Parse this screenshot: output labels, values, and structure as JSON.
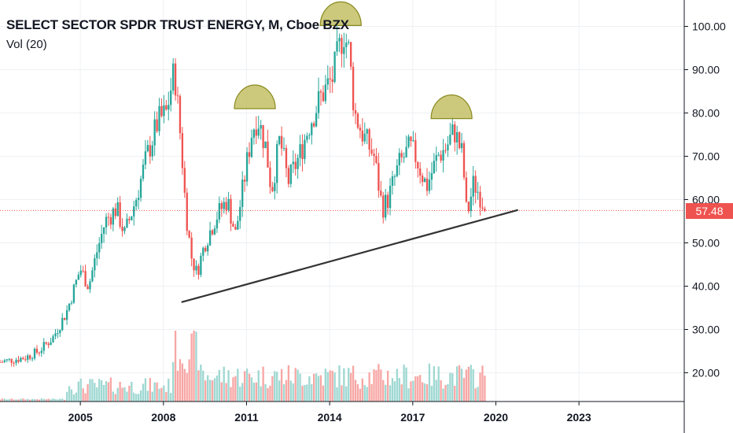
{
  "header": {
    "title": "SELECT SECTOR SPDR TRUST ENERGY, M, Cboe BZX",
    "volume_label": "Vol (20)"
  },
  "last_price": "57.48",
  "colors": {
    "up": "#26a69a",
    "down": "#ef5350",
    "vol_up": "#9fd8d2",
    "vol_down": "#f7a7a5",
    "trendline": "#333333",
    "annotation_fill": "#c3c066",
    "annotation_stroke": "#8a8a1f",
    "grid": "#eef0f3"
  },
  "chart_data": {
    "type": "candlestick",
    "title": "SELECT SECTOR SPDR TRUST ENERGY, M, Cboe BZX",
    "interval": "M",
    "exchange": "Cboe BZX",
    "x_ticks": [
      "2005",
      "2008",
      "2011",
      "2014",
      "2017",
      "2020",
      "2023"
    ],
    "y_ticks": [
      "20.00",
      "30.00",
      "40.00",
      "50.00",
      "60.00",
      "70.00",
      "80.00",
      "90.00",
      "100.00"
    ],
    "ylim": [
      15,
      105
    ],
    "xlim": [
      2002.1,
      2026.8
    ],
    "grid": true,
    "last_price": 57.48,
    "series": [
      {
        "name": "Vol (20)",
        "type": "volume"
      }
    ],
    "price_path": [
      [
        2002.1,
        22.5
      ],
      [
        2003.0,
        23.5
      ],
      [
        2003.5,
        25.0
      ],
      [
        2004.0,
        28.0
      ],
      [
        2004.5,
        34.0
      ],
      [
        2005.0,
        44.0
      ],
      [
        2005.3,
        40.0
      ],
      [
        2005.6,
        48.0
      ],
      [
        2005.9,
        55.0
      ],
      [
        2006.3,
        58.0
      ],
      [
        2006.6,
        52.0
      ],
      [
        2007.0,
        60.0
      ],
      [
        2007.4,
        70.0
      ],
      [
        2007.8,
        78.0
      ],
      [
        2008.1,
        80.0
      ],
      [
        2008.4,
        90.0
      ],
      [
        2008.65,
        72.0
      ],
      [
        2008.8,
        58.0
      ],
      [
        2009.0,
        47.0
      ],
      [
        2009.2,
        43.0
      ],
      [
        2009.5,
        50.0
      ],
      [
        2009.9,
        56.0
      ],
      [
        2010.3,
        60.0
      ],
      [
        2010.6,
        52.0
      ],
      [
        2010.9,
        64.0
      ],
      [
        2011.2,
        76.0
      ],
      [
        2011.4,
        79.0
      ],
      [
        2011.7,
        72.0
      ],
      [
        2011.9,
        62.0
      ],
      [
        2012.2,
        74.0
      ],
      [
        2012.5,
        64.0
      ],
      [
        2012.9,
        70.0
      ],
      [
        2013.3,
        78.0
      ],
      [
        2013.7,
        84.0
      ],
      [
        2014.1,
        88.0
      ],
      [
        2014.5,
        99.0
      ],
      [
        2014.7,
        94.0
      ],
      [
        2014.9,
        80.0
      ],
      [
        2015.2,
        75.0
      ],
      [
        2015.6,
        70.0
      ],
      [
        2015.9,
        58.0
      ],
      [
        2016.1,
        60.0
      ],
      [
        2016.5,
        68.0
      ],
      [
        2016.9,
        72.0
      ],
      [
        2017.1,
        70.0
      ],
      [
        2017.5,
        63.0
      ],
      [
        2017.9,
        70.0
      ],
      [
        2018.2,
        72.0
      ],
      [
        2018.5,
        76.0
      ],
      [
        2018.8,
        70.0
      ],
      [
        2018.95,
        56.0
      ],
      [
        2019.2,
        64.0
      ],
      [
        2019.5,
        60.0
      ],
      [
        2019.6,
        57.48
      ]
    ],
    "annotations": [
      {
        "type": "trendline",
        "from": [
          2008.65,
          36.3
        ],
        "to": [
          2020.8,
          57.6
        ]
      },
      {
        "type": "arc",
        "label": "",
        "center": [
          2011.3,
          81.0
        ]
      },
      {
        "type": "arc",
        "label": "",
        "center": [
          2014.4,
          100.2
        ]
      },
      {
        "type": "arc",
        "label": "",
        "center": [
          2018.4,
          78.7
        ]
      }
    ]
  }
}
